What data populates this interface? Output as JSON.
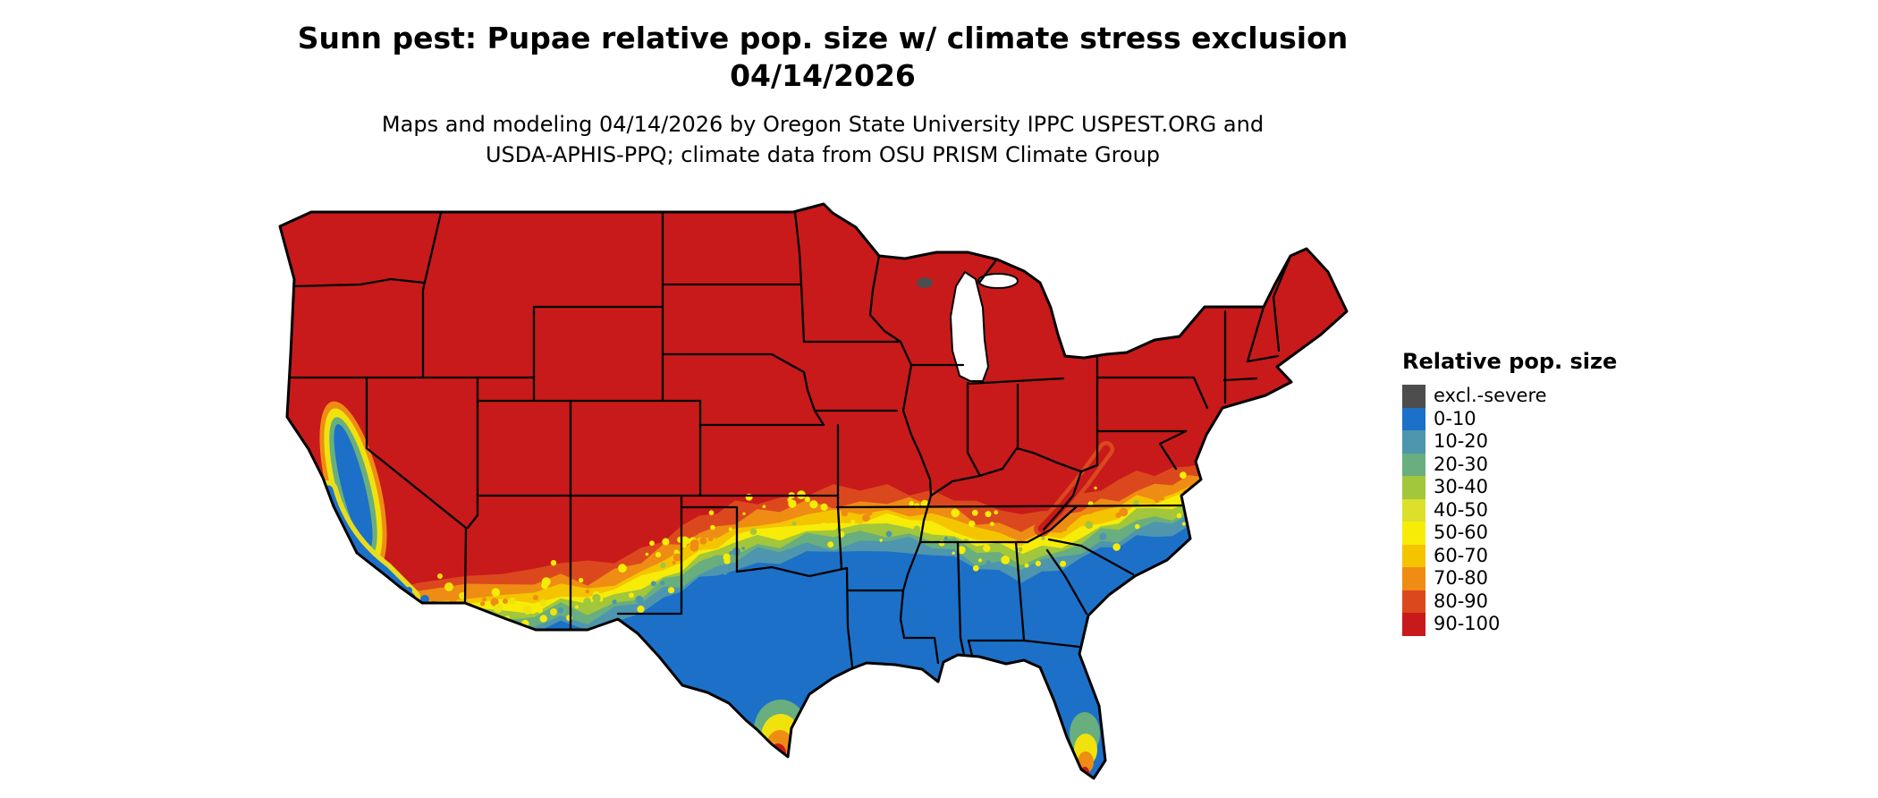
{
  "title": {
    "line1": "Sunn pest: Pupae relative pop. size w/ climate stress exclusion",
    "line2": "04/14/2026"
  },
  "subtitle": {
    "line1": "Maps and modeling 04/14/2026 by Oregon State University IPPC USPEST.ORG and",
    "line2": "USDA-APHIS-PPQ; climate data from OSU PRISM Climate Group"
  },
  "legend": {
    "title": "Relative pop. size",
    "entries": [
      {
        "label": "excl.-severe",
        "color": "#4D4D4D"
      },
      {
        "label": "0-10",
        "color": "#1C70C8"
      },
      {
        "label": "10-20",
        "color": "#4E96AE"
      },
      {
        "label": "20-30",
        "color": "#69AE7E"
      },
      {
        "label": "30-40",
        "color": "#A2C63C"
      },
      {
        "label": "40-50",
        "color": "#DCE02A"
      },
      {
        "label": "50-60",
        "color": "#F6EC08"
      },
      {
        "label": "60-70",
        "color": "#F4C400"
      },
      {
        "label": "70-80",
        "color": "#EE8C14"
      },
      {
        "label": "80-90",
        "color": "#DC481E"
      },
      {
        "label": "90-100",
        "color": "#C81A1A"
      }
    ]
  },
  "map_note": {
    "region_colors": {
      "north": "#C81A1A",
      "south": "#1C70C8",
      "excluded": "#4D4D4D",
      "water": "#FFFFFF"
    }
  }
}
